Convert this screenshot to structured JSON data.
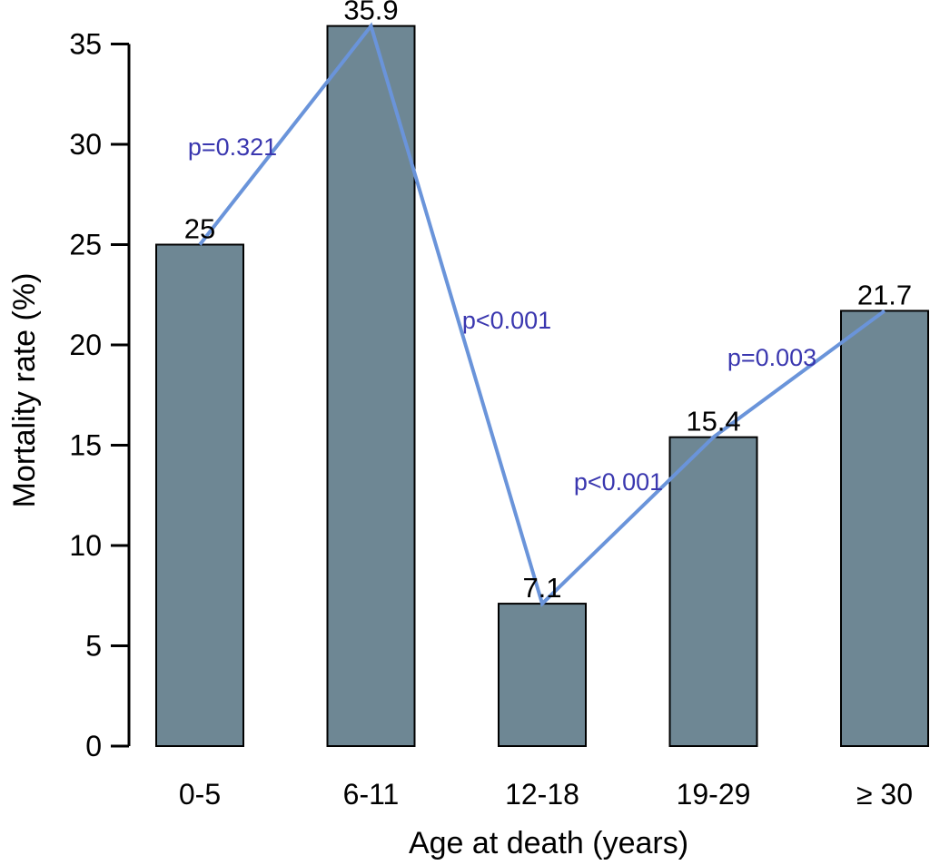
{
  "chart_data": {
    "type": "bar",
    "categories": [
      "0-5",
      "6-11",
      "12-18",
      "19-29",
      "≥ 30"
    ],
    "values": [
      25,
      35.9,
      7.1,
      15.4,
      21.7
    ],
    "value_labels": [
      "25",
      "35.9",
      "7.1",
      "15.4",
      "21.7"
    ],
    "p_values": [
      "p=0.321",
      "p<0.001",
      "p<0.001",
      "p=0.003"
    ],
    "title": "",
    "xlabel": "Age at death (years)",
    "ylabel": "Mortality rate (%)",
    "ylim": [
      0,
      35
    ],
    "yticks": [
      0,
      5,
      10,
      15,
      20,
      25,
      30,
      35
    ],
    "grid": "off",
    "legend": "none",
    "overlay": "line connecting bar tops with pairwise p-value annotations",
    "colors": {
      "bar_fill": "#6e8794",
      "bar_stroke": "#000000",
      "line": "#6a94da",
      "p_text": "#3a37af",
      "axis": "#000000",
      "text": "#000000",
      "background": "#ffffff"
    }
  }
}
